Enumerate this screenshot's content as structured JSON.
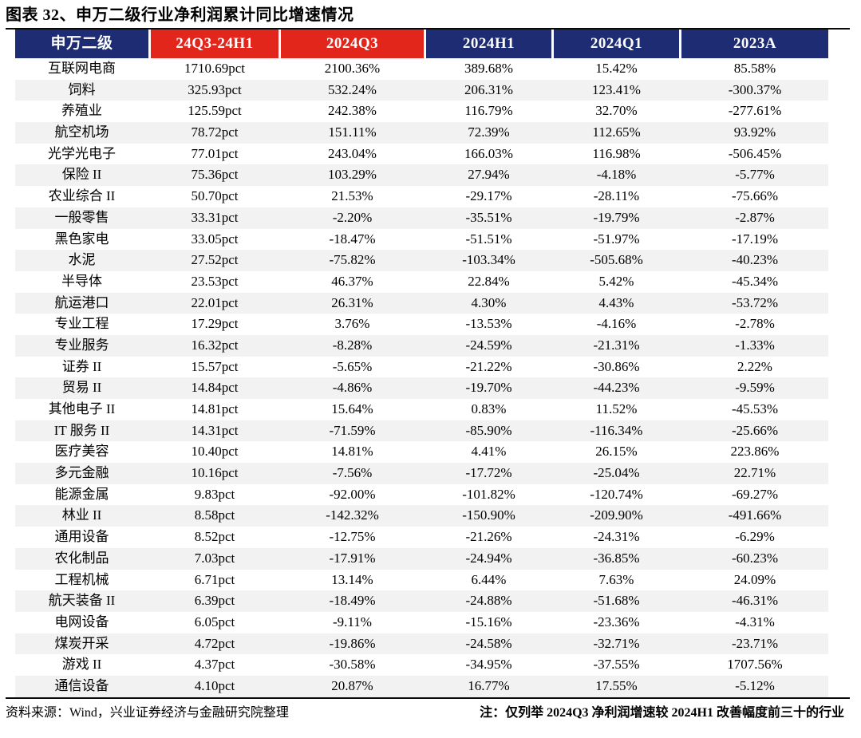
{
  "title": "图表 32、申万二级行业净利润累计同比增速情况",
  "colors": {
    "header_blue": "#1E2D73",
    "header_red": "#E2261C",
    "row_stripe": "#F2F2F2",
    "text": "#000000"
  },
  "table": {
    "columns": [
      {
        "label": "申万二级",
        "color": "blue"
      },
      {
        "label": "24Q3-24H1",
        "color": "red"
      },
      {
        "label": "2024Q3",
        "color": "red"
      },
      {
        "label": "2024H1",
        "color": "blue"
      },
      {
        "label": "2024Q1",
        "color": "blue"
      },
      {
        "label": "2023A",
        "color": "blue"
      }
    ],
    "rows": [
      {
        "industry": "互联网电商",
        "values": [
          "1710.69pct",
          "2100.36%",
          "389.68%",
          "15.42%",
          "85.58%"
        ]
      },
      {
        "industry": "饲料",
        "values": [
          "325.93pct",
          "532.24%",
          "206.31%",
          "123.41%",
          "-300.37%"
        ]
      },
      {
        "industry": "养殖业",
        "values": [
          "125.59pct",
          "242.38%",
          "116.79%",
          "32.70%",
          "-277.61%"
        ]
      },
      {
        "industry": "航空机场",
        "values": [
          "78.72pct",
          "151.11%",
          "72.39%",
          "112.65%",
          "93.92%"
        ]
      },
      {
        "industry": "光学光电子",
        "values": [
          "77.01pct",
          "243.04%",
          "166.03%",
          "116.98%",
          "-506.45%"
        ]
      },
      {
        "industry": "保险 II",
        "values": [
          "75.36pct",
          "103.29%",
          "27.94%",
          "-4.18%",
          "-5.77%"
        ]
      },
      {
        "industry": "农业综合 II",
        "values": [
          "50.70pct",
          "21.53%",
          "-29.17%",
          "-28.11%",
          "-75.66%"
        ]
      },
      {
        "industry": "一般零售",
        "values": [
          "33.31pct",
          "-2.20%",
          "-35.51%",
          "-19.79%",
          "-2.87%"
        ]
      },
      {
        "industry": "黑色家电",
        "values": [
          "33.05pct",
          "-18.47%",
          "-51.51%",
          "-51.97%",
          "-17.19%"
        ]
      },
      {
        "industry": "水泥",
        "values": [
          "27.52pct",
          "-75.82%",
          "-103.34%",
          "-505.68%",
          "-40.23%"
        ]
      },
      {
        "industry": "半导体",
        "values": [
          "23.53pct",
          "46.37%",
          "22.84%",
          "5.42%",
          "-45.34%"
        ]
      },
      {
        "industry": "航运港口",
        "values": [
          "22.01pct",
          "26.31%",
          "4.30%",
          "4.43%",
          "-53.72%"
        ]
      },
      {
        "industry": "专业工程",
        "values": [
          "17.29pct",
          "3.76%",
          "-13.53%",
          "-4.16%",
          "-2.78%"
        ]
      },
      {
        "industry": "专业服务",
        "values": [
          "16.32pct",
          "-8.28%",
          "-24.59%",
          "-21.31%",
          "-1.33%"
        ]
      },
      {
        "industry": "证券 II",
        "values": [
          "15.57pct",
          "-5.65%",
          "-21.22%",
          "-30.86%",
          "2.22%"
        ]
      },
      {
        "industry": "贸易 II",
        "values": [
          "14.84pct",
          "-4.86%",
          "-19.70%",
          "-44.23%",
          "-9.59%"
        ]
      },
      {
        "industry": "其他电子 II",
        "values": [
          "14.81pct",
          "15.64%",
          "0.83%",
          "11.52%",
          "-45.53%"
        ]
      },
      {
        "industry": "IT 服务 II",
        "values": [
          "14.31pct",
          "-71.59%",
          "-85.90%",
          "-116.34%",
          "-25.66%"
        ]
      },
      {
        "industry": "医疗美容",
        "values": [
          "10.40pct",
          "14.81%",
          "4.41%",
          "26.15%",
          "223.86%"
        ]
      },
      {
        "industry": "多元金融",
        "values": [
          "10.16pct",
          "-7.56%",
          "-17.72%",
          "-25.04%",
          "22.71%"
        ]
      },
      {
        "industry": "能源金属",
        "values": [
          "9.83pct",
          "-92.00%",
          "-101.82%",
          "-120.74%",
          "-69.27%"
        ]
      },
      {
        "industry": "林业 II",
        "values": [
          "8.58pct",
          "-142.32%",
          "-150.90%",
          "-209.90%",
          "-491.66%"
        ]
      },
      {
        "industry": "通用设备",
        "values": [
          "8.52pct",
          "-12.75%",
          "-21.26%",
          "-24.31%",
          "-6.29%"
        ]
      },
      {
        "industry": "农化制品",
        "values": [
          "7.03pct",
          "-17.91%",
          "-24.94%",
          "-36.85%",
          "-60.23%"
        ]
      },
      {
        "industry": "工程机械",
        "values": [
          "6.71pct",
          "13.14%",
          "6.44%",
          "7.63%",
          "24.09%"
        ]
      },
      {
        "industry": "航天装备 II",
        "values": [
          "6.39pct",
          "-18.49%",
          "-24.88%",
          "-51.68%",
          "-46.31%"
        ]
      },
      {
        "industry": "电网设备",
        "values": [
          "6.05pct",
          "-9.11%",
          "-15.16%",
          "-23.36%",
          "-4.31%"
        ]
      },
      {
        "industry": "煤炭开采",
        "values": [
          "4.72pct",
          "-19.86%",
          "-24.58%",
          "-32.71%",
          "-23.71%"
        ]
      },
      {
        "industry": "游戏 II",
        "values": [
          "4.37pct",
          "-30.58%",
          "-34.95%",
          "-37.55%",
          "1707.56%"
        ]
      },
      {
        "industry": "通信设备",
        "values": [
          "4.10pct",
          "20.87%",
          "16.77%",
          "17.55%",
          "-5.12%"
        ]
      }
    ]
  },
  "footer": {
    "source": "资料来源：Wind，兴业证券经济与金融研究院整理",
    "note": "注：仅列举 2024Q3 净利润增速较 2024H1 改善幅度前三十的行业"
  }
}
